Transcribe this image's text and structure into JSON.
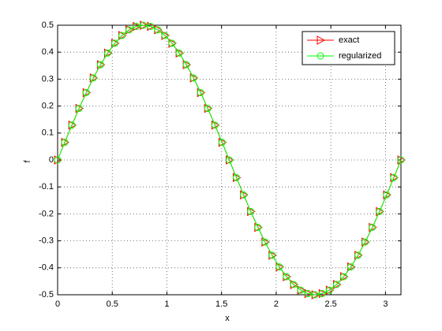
{
  "chart_data": {
    "type": "line",
    "xlabel": "x",
    "ylabel": "f",
    "x": [
      0,
      0.065,
      0.131,
      0.196,
      0.262,
      0.327,
      0.393,
      0.458,
      0.524,
      0.589,
      0.654,
      0.72,
      0.785,
      0.851,
      0.916,
      0.982,
      1.047,
      1.113,
      1.178,
      1.244,
      1.309,
      1.374,
      1.44,
      1.505,
      1.571,
      1.636,
      1.702,
      1.767,
      1.833,
      1.898,
      1.963,
      2.029,
      2.094,
      2.16,
      2.225,
      2.291,
      2.356,
      2.422,
      2.487,
      2.553,
      2.618,
      2.683,
      2.749,
      2.814,
      2.88,
      2.945,
      3.011,
      3.076,
      3.142
    ],
    "series": [
      {
        "name": "exact",
        "color": "#ff0000",
        "marker": "triangle-right",
        "values": [
          0,
          0.0653,
          0.1294,
          0.1913,
          0.25,
          0.3044,
          0.3536,
          0.3967,
          0.433,
          0.4619,
          0.483,
          0.4957,
          0.5,
          0.4957,
          0.483,
          0.4619,
          0.433,
          0.3967,
          0.3536,
          0.3044,
          0.25,
          0.1913,
          0.1294,
          0.0653,
          0,
          -0.0653,
          -0.1294,
          -0.1913,
          -0.25,
          -0.3044,
          -0.3536,
          -0.3967,
          -0.433,
          -0.4619,
          -0.483,
          -0.4957,
          -0.5,
          -0.4957,
          -0.483,
          -0.4619,
          -0.433,
          -0.3967,
          -0.3536,
          -0.3044,
          -0.25,
          -0.1913,
          -0.1294,
          -0.0653,
          0
        ]
      },
      {
        "name": "regularized",
        "color": "#00ff00",
        "marker": "circle",
        "values": [
          0,
          0.0653,
          0.1294,
          0.1913,
          0.25,
          0.3044,
          0.3536,
          0.3967,
          0.433,
          0.4619,
          0.483,
          0.4957,
          0.5,
          0.4957,
          0.483,
          0.4619,
          0.433,
          0.3967,
          0.3536,
          0.3044,
          0.25,
          0.1913,
          0.1294,
          0.0653,
          0,
          -0.0653,
          -0.1294,
          -0.1913,
          -0.25,
          -0.3044,
          -0.3536,
          -0.3967,
          -0.433,
          -0.4619,
          -0.483,
          -0.4957,
          -0.5,
          -0.4957,
          -0.483,
          -0.4619,
          -0.433,
          -0.3967,
          -0.3536,
          -0.3044,
          -0.25,
          -0.1913,
          -0.1294,
          -0.0653,
          0
        ]
      }
    ],
    "xlim": [
      0,
      3.1416
    ],
    "xticks": [
      0,
      0.5,
      1,
      1.5,
      2,
      2.5,
      3
    ],
    "ylim": [
      -0.5,
      0.5
    ],
    "yticks": [
      -0.5,
      -0.4,
      -0.3,
      -0.2,
      -0.1,
      0,
      0.1,
      0.2,
      0.3,
      0.4,
      0.5
    ],
    "grid": true,
    "legend": "upper right"
  }
}
